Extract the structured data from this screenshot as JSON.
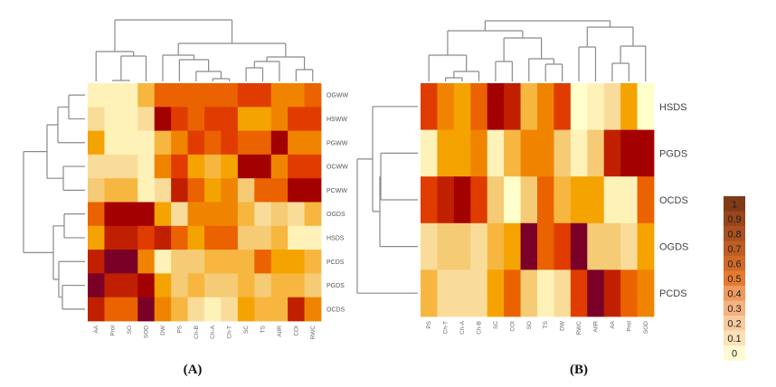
{
  "chart_data": [
    {
      "type": "heatmap",
      "panel": "(A)",
      "caption": "(A)",
      "rows": [
        "OGWW",
        "HSWW",
        "PGWW",
        "OCWW",
        "PCWW",
        "OGDS",
        "HSDS",
        "PCDS",
        "PGDS",
        "OCDS"
      ],
      "columns": [
        "AA",
        "Prol",
        "SO",
        "SOD",
        "DW",
        "PS",
        "Ch-B",
        "Ch-A",
        "Ch-T",
        "SC",
        "TS",
        "AIIR",
        "COI",
        "RWC"
      ],
      "values": [
        [
          0.05,
          0.1,
          0.1,
          0.4,
          0.7,
          0.7,
          0.7,
          0.7,
          0.7,
          0.8,
          0.8,
          0.6,
          0.6,
          0.7
        ],
        [
          0.2,
          0.1,
          0.1,
          0.2,
          1.0,
          0.8,
          0.7,
          0.8,
          0.8,
          0.5,
          0.5,
          0.6,
          0.8,
          0.8
        ],
        [
          0.5,
          0.1,
          0.1,
          0.05,
          0.4,
          0.6,
          0.8,
          0.7,
          0.8,
          0.7,
          0.7,
          1.0,
          0.6,
          0.6
        ],
        [
          0.2,
          0.2,
          0.2,
          0.1,
          0.6,
          0.8,
          0.5,
          0.4,
          0.5,
          1.0,
          1.0,
          0.6,
          0.8,
          0.8
        ],
        [
          0.3,
          0.4,
          0.4,
          0.1,
          0.2,
          0.9,
          0.7,
          0.5,
          0.6,
          0.3,
          0.7,
          0.7,
          1.0,
          1.0
        ],
        [
          0.7,
          1.0,
          1.0,
          1.0,
          0.5,
          0.2,
          0.6,
          0.6,
          0.6,
          0.4,
          0.2,
          0.3,
          0.2,
          0.4
        ],
        [
          0.5,
          0.9,
          0.9,
          0.8,
          0.9,
          0.7,
          0.5,
          0.7,
          0.7,
          0.3,
          0.3,
          0.4,
          0.05,
          0.1
        ],
        [
          0.9,
          1.1,
          1.1,
          0.6,
          0.1,
          0.3,
          0.3,
          0.4,
          0.4,
          0.4,
          0.7,
          0.5,
          0.5,
          0.4
        ],
        [
          1.1,
          0.9,
          0.9,
          1.0,
          0.5,
          0.3,
          0.4,
          0.3,
          0.3,
          0.4,
          0.3,
          0.4,
          0.4,
          0.3
        ],
        [
          0.9,
          0.7,
          0.7,
          1.1,
          0.6,
          0.4,
          0.2,
          0.1,
          0.2,
          0.5,
          0.4,
          0.4,
          0.9,
          0.6
        ]
      ],
      "row_dendrogram": true,
      "column_dendrogram": true
    },
    {
      "type": "heatmap",
      "panel": "(B)",
      "caption": "(B)",
      "rows": [
        "HSDS",
        "PGDS",
        "OCDS",
        "OGDS",
        "PCDS"
      ],
      "columns": [
        "PS",
        "Ch-T",
        "Ch-A",
        "Ch-B",
        "SC",
        "COI",
        "SO",
        "TS",
        "DW",
        "RWC",
        "AIIR",
        "AA",
        "Prol",
        "SOD"
      ],
      "values": [
        [
          0.8,
          0.6,
          0.5,
          0.7,
          1.0,
          0.9,
          0.4,
          0.6,
          0.8,
          0.0,
          0.1,
          0.2,
          0.5,
          0.0
        ],
        [
          0.1,
          0.5,
          0.5,
          0.6,
          0.1,
          0.4,
          0.6,
          0.6,
          0.3,
          0.1,
          0.3,
          0.9,
          1.0,
          1.0
        ],
        [
          0.8,
          0.9,
          1.0,
          0.8,
          0.3,
          0.0,
          0.3,
          0.7,
          0.4,
          0.5,
          0.5,
          0.1,
          0.1,
          0.7
        ],
        [
          0.2,
          0.3,
          0.3,
          0.2,
          0.4,
          0.5,
          1.1,
          0.7,
          0.8,
          1.1,
          0.3,
          0.3,
          0.2,
          0.5
        ],
        [
          0.4,
          0.2,
          0.2,
          0.2,
          0.5,
          0.7,
          0.3,
          0.1,
          0.2,
          0.8,
          1.1,
          0.9,
          0.7,
          0.6
        ]
      ],
      "row_dendrogram": true,
      "column_dendrogram": true
    }
  ],
  "legend": {
    "labels": [
      "1",
      "0.9",
      "0.8",
      "0.7",
      "0.6",
      "0.5",
      "0.4",
      "0.3",
      "0.2",
      "0.1",
      "0"
    ],
    "colors": [
      "#7F3B17",
      "#97451B",
      "#A9511F",
      "#BD5D24",
      "#D06A2A",
      "#E57A32",
      "#EE9A5E",
      "#F3B27E",
      "#F8CB9E",
      "#FBE0B8",
      "#FFFAD0"
    ]
  },
  "heat_colors": [
    "#FFFFCC",
    "#FFF2B8",
    "#FADC9A",
    "#F5CB76",
    "#F7B640",
    "#F5A300",
    "#F08400",
    "#EB6200",
    "#E03C00",
    "#C02000",
    "#A30000",
    "#7A0028"
  ]
}
